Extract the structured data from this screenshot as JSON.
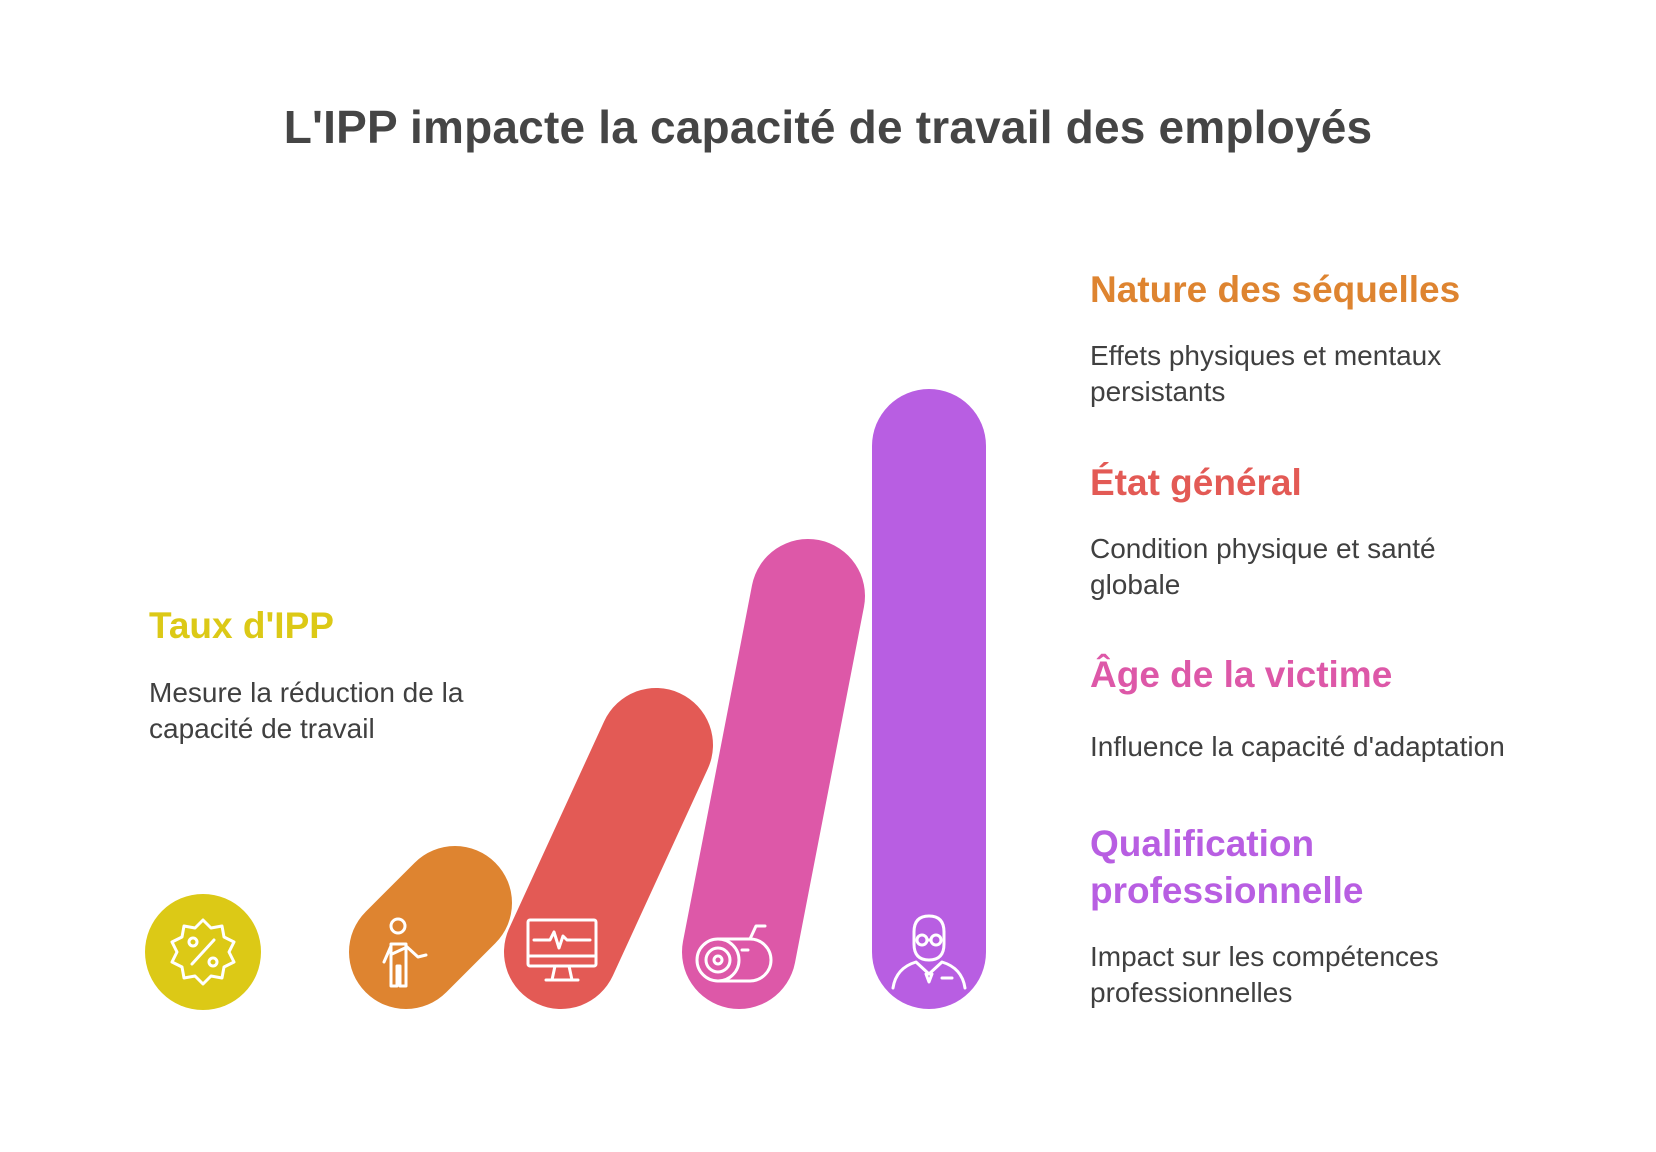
{
  "title": "L'IPP impacte la capacité de travail des employés",
  "colors": {
    "yellow": "#DCC916",
    "orange": "#DE8430",
    "red": "#E35A55",
    "pink": "#DD58A8",
    "purple": "#B85EE2"
  },
  "items": [
    {
      "heading": "Taux d'IPP",
      "description": "Mesure la réduction de la capacité de travail",
      "icon": "percent-badge-icon"
    },
    {
      "heading": "Nature des séquelles",
      "description": "Effets physiques et mentaux persistants",
      "icon": "injured-person-icon"
    },
    {
      "heading": "État général",
      "description": "Condition physique et santé globale",
      "icon": "health-monitor-icon"
    },
    {
      "heading": "Âge de la victime",
      "description": "Influence la capacité d'adaptation",
      "icon": "tape-measure-icon"
    },
    {
      "heading": "Qualification professionnelle",
      "description": "Impact sur les compétences professionnelles",
      "icon": "professional-person-icon"
    }
  ]
}
